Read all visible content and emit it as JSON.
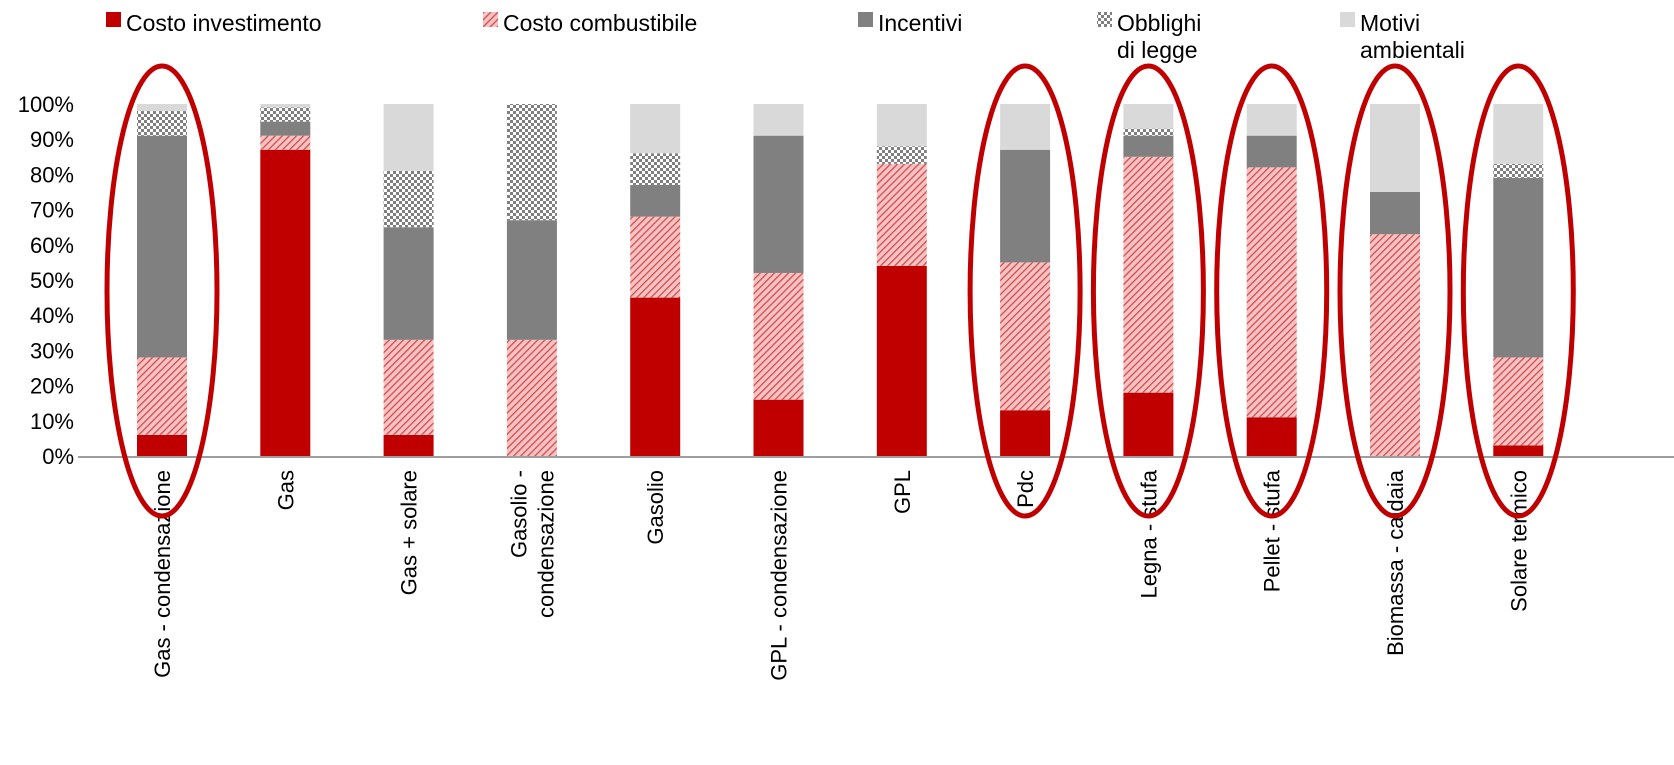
{
  "chart_data": {
    "type": "bar",
    "stacked": true,
    "ylim": [
      0,
      100
    ],
    "grid": false,
    "legend_placement": "top",
    "y_ticks": [
      "0%",
      "10%",
      "20%",
      "30%",
      "40%",
      "50%",
      "60%",
      "70%",
      "80%",
      "90%",
      "100%"
    ],
    "categories": [
      "Gas - condensazione",
      "Gas",
      "Gas + solare",
      "Gasolio - condensazione",
      "Gasolio",
      "GPL - condensazione",
      "GPL",
      "Pdc",
      "Legna - stufa",
      "Pellet - stufa",
      "Biomassa - caldaia",
      "Solare termico"
    ],
    "category_lines": [
      [
        "Gas - condensazione"
      ],
      [
        "Gas"
      ],
      [
        "Gas + solare"
      ],
      [
        "Gasolio -",
        "condensazione"
      ],
      [
        "Gasolio"
      ],
      [
        "GPL - condensazione"
      ],
      [
        "GPL"
      ],
      [
        "Pdc"
      ],
      [
        "Legna - stufa"
      ],
      [
        "Pellet - stufa"
      ],
      [
        "Biomassa - caldaia"
      ],
      [
        "Solare termico"
      ]
    ],
    "series": [
      {
        "name": "Costo investimento",
        "color": "#c00000",
        "pattern": "solid",
        "values": [
          6,
          87,
          6,
          0,
          45,
          16,
          54,
          13,
          18,
          11,
          0,
          3
        ]
      },
      {
        "name": "Costo combustibile",
        "color": "#e46c6c",
        "pattern": "diagonal-hatch",
        "values": [
          22,
          4,
          27,
          33,
          23,
          36,
          29,
          42,
          67,
          71,
          63,
          25
        ]
      },
      {
        "name": "Incentivi",
        "color": "#808080",
        "pattern": "solid",
        "values": [
          63,
          4,
          32,
          34,
          9,
          39,
          0,
          32,
          6,
          9,
          12,
          51
        ]
      },
      {
        "name": "Obblighi di legge",
        "color": "#a6a6a6",
        "pattern": "checker",
        "values": [
          7,
          4,
          16,
          33,
          9,
          0,
          5,
          0,
          2,
          0,
          0,
          4
        ]
      },
      {
        "name": "Motivi ambientali",
        "color": "#d9d9d9",
        "pattern": "solid",
        "values": [
          2,
          1,
          19,
          0,
          14,
          9,
          12,
          13,
          7,
          9,
          25,
          17
        ]
      }
    ],
    "legend_lines": [
      [
        "Costo investimento"
      ],
      [
        "Costo combustibile"
      ],
      [
        "Incentivi"
      ],
      [
        "Obblighi",
        "di legge"
      ],
      [
        "Motivi",
        "ambientali"
      ]
    ],
    "highlighted_categories": [
      "Gas - condensazione",
      "Pdc",
      "Legna - stufa",
      "Pellet - stufa",
      "Biomassa - caldaia",
      "Solare termico"
    ],
    "highlight_color": "#c00000"
  }
}
